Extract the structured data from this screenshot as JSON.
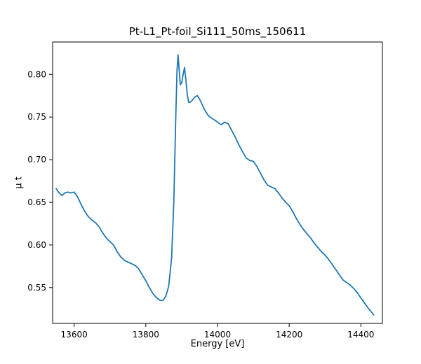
{
  "chart_data": {
    "type": "line",
    "title": "Pt-L1_Pt-foil_Si111_50ms_150611",
    "xlabel": "Energy [eV]",
    "ylabel": "μ t",
    "xlim": [
      13540,
      14460
    ],
    "ylim": [
      0.508,
      0.838
    ],
    "xticks": [
      13600,
      13800,
      14000,
      14200,
      14400
    ],
    "yticks": [
      0.55,
      0.6,
      0.65,
      0.7,
      0.75,
      0.8
    ],
    "grid": false,
    "legend_position": "none",
    "line_color": "#1f77b4",
    "series": [
      {
        "name": "mu_t_absorption",
        "points": [
          [
            13550,
            0.666
          ],
          [
            13558,
            0.661
          ],
          [
            13566,
            0.658
          ],
          [
            13574,
            0.661
          ],
          [
            13582,
            0.662
          ],
          [
            13590,
            0.661
          ],
          [
            13600,
            0.662
          ],
          [
            13610,
            0.656
          ],
          [
            13620,
            0.647
          ],
          [
            13630,
            0.639
          ],
          [
            13640,
            0.633
          ],
          [
            13650,
            0.629
          ],
          [
            13660,
            0.626
          ],
          [
            13670,
            0.621
          ],
          [
            13680,
            0.614
          ],
          [
            13690,
            0.608
          ],
          [
            13700,
            0.604
          ],
          [
            13710,
            0.6
          ],
          [
            13720,
            0.592
          ],
          [
            13730,
            0.586
          ],
          [
            13740,
            0.582
          ],
          [
            13750,
            0.58
          ],
          [
            13760,
            0.578
          ],
          [
            13770,
            0.576
          ],
          [
            13780,
            0.572
          ],
          [
            13790,
            0.565
          ],
          [
            13800,
            0.558
          ],
          [
            13810,
            0.55
          ],
          [
            13820,
            0.543
          ],
          [
            13830,
            0.538
          ],
          [
            13840,
            0.535
          ],
          [
            13848,
            0.535
          ],
          [
            13856,
            0.54
          ],
          [
            13864,
            0.552
          ],
          [
            13872,
            0.585
          ],
          [
            13878,
            0.65
          ],
          [
            13883,
            0.74
          ],
          [
            13887,
            0.805
          ],
          [
            13890,
            0.823
          ],
          [
            13893,
            0.806
          ],
          [
            13896,
            0.788
          ],
          [
            13900,
            0.79
          ],
          [
            13904,
            0.8
          ],
          [
            13908,
            0.808
          ],
          [
            13912,
            0.793
          ],
          [
            13916,
            0.775
          ],
          [
            13920,
            0.767
          ],
          [
            13926,
            0.768
          ],
          [
            13932,
            0.771
          ],
          [
            13938,
            0.774
          ],
          [
            13944,
            0.775
          ],
          [
            13950,
            0.771
          ],
          [
            13958,
            0.764
          ],
          [
            13966,
            0.757
          ],
          [
            13974,
            0.752
          ],
          [
            13982,
            0.749
          ],
          [
            13990,
            0.747
          ],
          [
            14000,
            0.744
          ],
          [
            14010,
            0.741
          ],
          [
            14020,
            0.744
          ],
          [
            14030,
            0.742
          ],
          [
            14040,
            0.734
          ],
          [
            14050,
            0.726
          ],
          [
            14060,
            0.717
          ],
          [
            14070,
            0.709
          ],
          [
            14080,
            0.702
          ],
          [
            14090,
            0.699
          ],
          [
            14100,
            0.698
          ],
          [
            14110,
            0.692
          ],
          [
            14120,
            0.684
          ],
          [
            14130,
            0.676
          ],
          [
            14140,
            0.67
          ],
          [
            14150,
            0.668
          ],
          [
            14160,
            0.666
          ],
          [
            14170,
            0.661
          ],
          [
            14180,
            0.655
          ],
          [
            14190,
            0.65
          ],
          [
            14200,
            0.646
          ],
          [
            14210,
            0.639
          ],
          [
            14220,
            0.631
          ],
          [
            14230,
            0.624
          ],
          [
            14240,
            0.618
          ],
          [
            14250,
            0.613
          ],
          [
            14260,
            0.608
          ],
          [
            14270,
            0.602
          ],
          [
            14280,
            0.597
          ],
          [
            14290,
            0.592
          ],
          [
            14300,
            0.588
          ],
          [
            14310,
            0.583
          ],
          [
            14320,
            0.577
          ],
          [
            14330,
            0.571
          ],
          [
            14340,
            0.565
          ],
          [
            14350,
            0.559
          ],
          [
            14360,
            0.556
          ],
          [
            14370,
            0.553
          ],
          [
            14380,
            0.549
          ],
          [
            14390,
            0.544
          ],
          [
            14400,
            0.538
          ],
          [
            14410,
            0.532
          ],
          [
            14420,
            0.526
          ],
          [
            14430,
            0.521
          ],
          [
            14436,
            0.518
          ]
        ]
      }
    ]
  }
}
